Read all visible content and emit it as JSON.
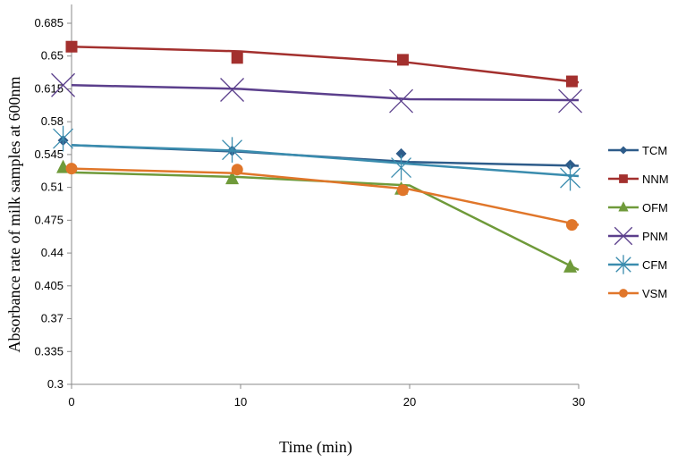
{
  "chart_data": {
    "type": "line",
    "xlabel": "Time (min)",
    "ylabel": "Absorbance rate of milk samples at 600nm",
    "x": [
      0,
      10,
      20,
      30
    ],
    "xlim": [
      0,
      30
    ],
    "ylim": [
      0.3,
      0.705
    ],
    "xticks": [
      "0",
      "10",
      "20",
      "30"
    ],
    "yticks": [
      "0.3",
      "0.335",
      "0.37",
      "0.405",
      "0.44",
      "0.475",
      "0.51",
      "0.545",
      "0.58",
      "0.615",
      "0.65",
      "0.685"
    ],
    "grid": false,
    "legend_position": "right",
    "series": [
      {
        "name": "TCM",
        "color": "#2e5c8a",
        "marker": "diamond",
        "x": [
          -0.5,
          9.5,
          19.5,
          29.5
        ],
        "values": [
          0.56,
          0.549,
          0.546,
          0.534
        ],
        "line": [
          0.555,
          0.548,
          0.537,
          0.533
        ]
      },
      {
        "name": "NNM",
        "color": "#a3302e",
        "marker": "square",
        "x": [
          0,
          9.8,
          19.6,
          29.6
        ],
        "values": [
          0.66,
          0.648,
          0.646,
          0.623
        ],
        "line": [
          0.66,
          0.655,
          0.643,
          0.622
        ]
      },
      {
        "name": "OFM",
        "color": "#6f9a3a",
        "marker": "triangle",
        "x": [
          -0.5,
          9.5,
          19.5,
          29.5
        ],
        "values": [
          0.531,
          0.519,
          0.508,
          0.425
        ],
        "line": [
          0.526,
          0.521,
          0.512,
          0.422
        ]
      },
      {
        "name": "PNM",
        "color": "#5b3f8c",
        "marker": "x",
        "x": [
          -0.5,
          9.5,
          19.5,
          29.5
        ],
        "values": [
          0.619,
          0.614,
          0.602,
          0.602
        ],
        "line": [
          0.619,
          0.615,
          0.604,
          0.603
        ]
      },
      {
        "name": "CFM",
        "color": "#3a8cae",
        "marker": "asterisk",
        "x": [
          -0.5,
          9.5,
          19.5,
          29.5
        ],
        "values": [
          0.562,
          0.55,
          0.531,
          0.52
        ],
        "line": [
          0.555,
          0.549,
          0.535,
          0.522
        ]
      },
      {
        "name": "VSM",
        "color": "#e0762a",
        "marker": "circle",
        "x": [
          0,
          9.8,
          19.6,
          29.6
        ],
        "values": [
          0.53,
          0.529,
          0.507,
          0.47
        ],
        "line": [
          0.53,
          0.525,
          0.508,
          0.47
        ]
      }
    ]
  }
}
